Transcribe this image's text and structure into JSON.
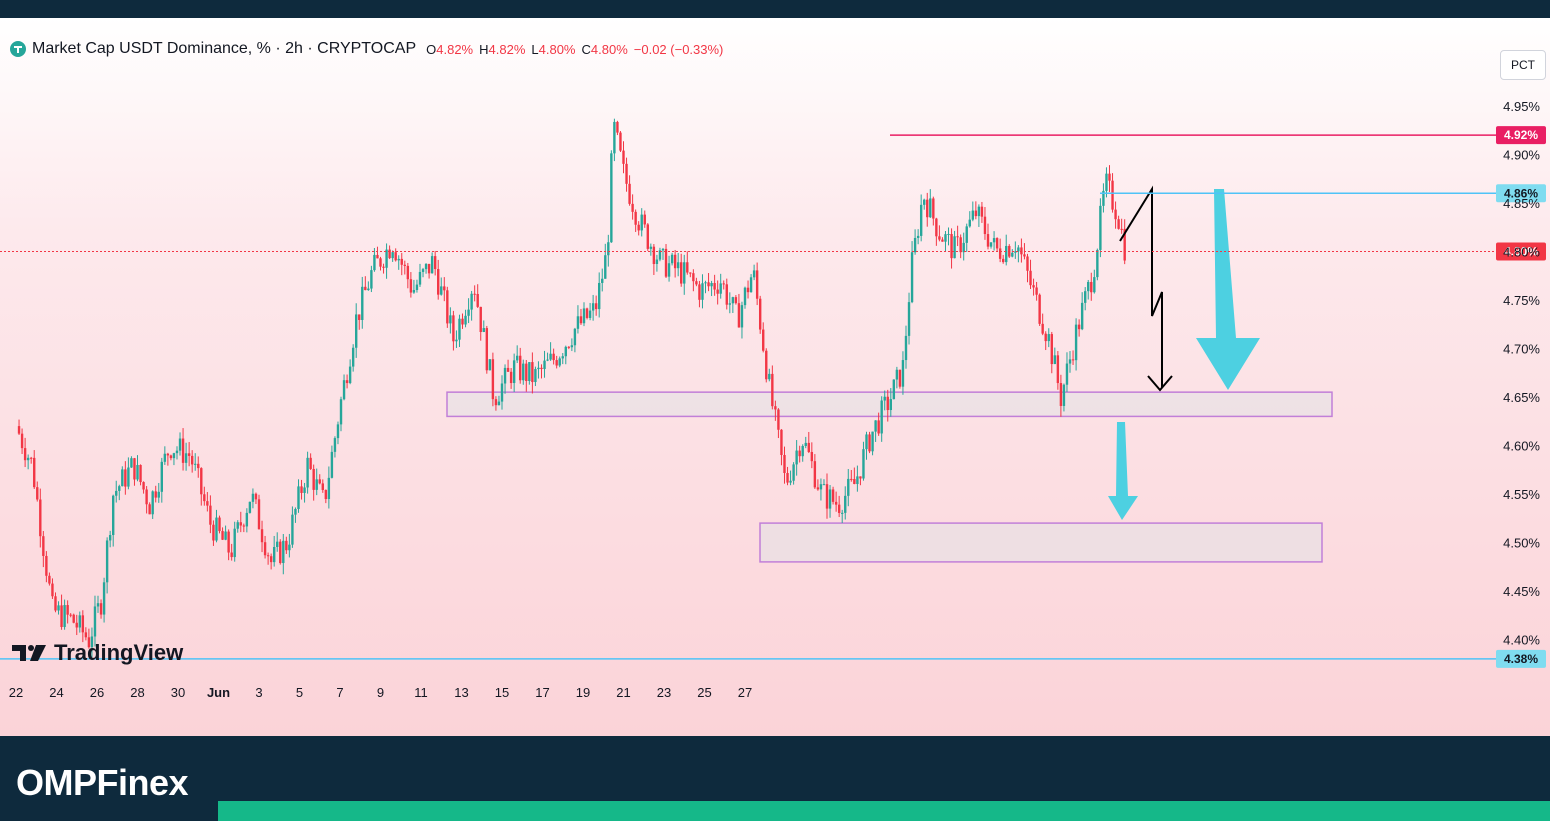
{
  "legend": {
    "title": "Market Cap USDT Dominance, % · 2h · CRYPTOCAP",
    "open_key": "O",
    "open": "4.82%",
    "high_key": "H",
    "high": "4.82%",
    "low_key": "L",
    "low": "4.80%",
    "close_key": "C",
    "close": "4.80%",
    "change": "−0.02 (−0.33%)"
  },
  "scale_button": "PCT",
  "watermark": "TradingView",
  "brand": "OMPFinex",
  "chart_data": {
    "type": "candlestick",
    "title": "Market Cap USDT Dominance, % · 2h · CRYPTOCAP",
    "y_unit": "%",
    "ylim": [
      4.36,
      4.98
    ],
    "y_ticks": [
      "4.40%",
      "4.45%",
      "4.50%",
      "4.55%",
      "4.60%",
      "4.65%",
      "4.70%",
      "4.75%",
      "4.80%",
      "4.85%",
      "4.90%",
      "4.95%"
    ],
    "x_ticks": [
      "22",
      "24",
      "26",
      "28",
      "30",
      "Jun",
      "3",
      "5",
      "7",
      "9",
      "11",
      "13",
      "15",
      "17",
      "19",
      "21",
      "23",
      "25",
      "27"
    ],
    "price_path": [
      [
        0,
        4.62
      ],
      [
        0.4,
        4.58
      ],
      [
        0.9,
        4.43
      ],
      [
        1.4,
        4.42
      ],
      [
        1.8,
        4.4
      ],
      [
        2.1,
        4.44
      ],
      [
        2.4,
        4.55
      ],
      [
        2.9,
        4.58
      ],
      [
        3.3,
        4.54
      ],
      [
        3.8,
        4.6
      ],
      [
        4.3,
        4.59
      ],
      [
        4.8,
        4.52
      ],
      [
        5.3,
        4.49
      ],
      [
        5.8,
        4.55
      ],
      [
        6.3,
        4.48
      ],
      [
        6.7,
        4.5
      ],
      [
        7.2,
        4.58
      ],
      [
        7.6,
        4.54
      ],
      [
        8.0,
        4.64
      ],
      [
        8.4,
        4.73
      ],
      [
        8.8,
        4.78
      ],
      [
        9.3,
        4.81
      ],
      [
        9.8,
        4.76
      ],
      [
        10.3,
        4.79
      ],
      [
        10.8,
        4.71
      ],
      [
        11.3,
        4.77
      ],
      [
        11.8,
        4.65
      ],
      [
        12.3,
        4.68
      ],
      [
        12.8,
        4.67
      ],
      [
        13.3,
        4.69
      ],
      [
        13.8,
        4.72
      ],
      [
        14.3,
        4.74
      ],
      [
        14.6,
        4.8
      ],
      [
        14.75,
        4.93
      ],
      [
        15.0,
        4.88
      ],
      [
        15.4,
        4.83
      ],
      [
        15.9,
        4.79
      ],
      [
        16.4,
        4.78
      ],
      [
        16.9,
        4.76
      ],
      [
        17.4,
        4.77
      ],
      [
        17.8,
        4.73
      ],
      [
        18.2,
        4.78
      ],
      [
        18.6,
        4.66
      ],
      [
        19.0,
        4.56
      ],
      [
        19.4,
        4.61
      ],
      [
        19.9,
        4.55
      ],
      [
        20.3,
        4.54
      ],
      [
        20.7,
        4.56
      ],
      [
        21.1,
        4.61
      ],
      [
        21.6,
        4.65
      ],
      [
        21.9,
        4.68
      ],
      [
        22.1,
        4.78
      ],
      [
        22.4,
        4.86
      ],
      [
        22.8,
        4.82
      ],
      [
        23.2,
        4.8
      ],
      [
        23.7,
        4.84
      ],
      [
        24.2,
        4.8
      ],
      [
        24.7,
        4.81
      ],
      [
        25.1,
        4.76
      ],
      [
        25.5,
        4.71
      ],
      [
        25.8,
        4.65
      ],
      [
        26.2,
        4.72
      ],
      [
        26.6,
        4.78
      ],
      [
        26.9,
        4.87
      ],
      [
        27.2,
        4.84
      ],
      [
        27.4,
        4.8
      ]
    ],
    "price_lines": [
      {
        "label": "4.92%",
        "value": 4.92,
        "color": "#e91e63"
      },
      {
        "label": "4.86%",
        "value": 4.86,
        "color": "#4fc3f7"
      },
      {
        "label": "4.80%",
        "value": 4.8,
        "color": "#f23645"
      },
      {
        "label": "4.38%",
        "value": 4.38,
        "color": "#4fc3f7"
      }
    ],
    "zones": [
      {
        "name": "support-zone-upper",
        "from": 4.63,
        "to": 4.655
      },
      {
        "name": "support-zone-lower",
        "from": 4.48,
        "to": 4.52
      }
    ],
    "colors": {
      "up": "#26a69a",
      "down": "#f23645",
      "arrow": "#4dd0e1",
      "zone_border": "#c17fd8"
    }
  }
}
